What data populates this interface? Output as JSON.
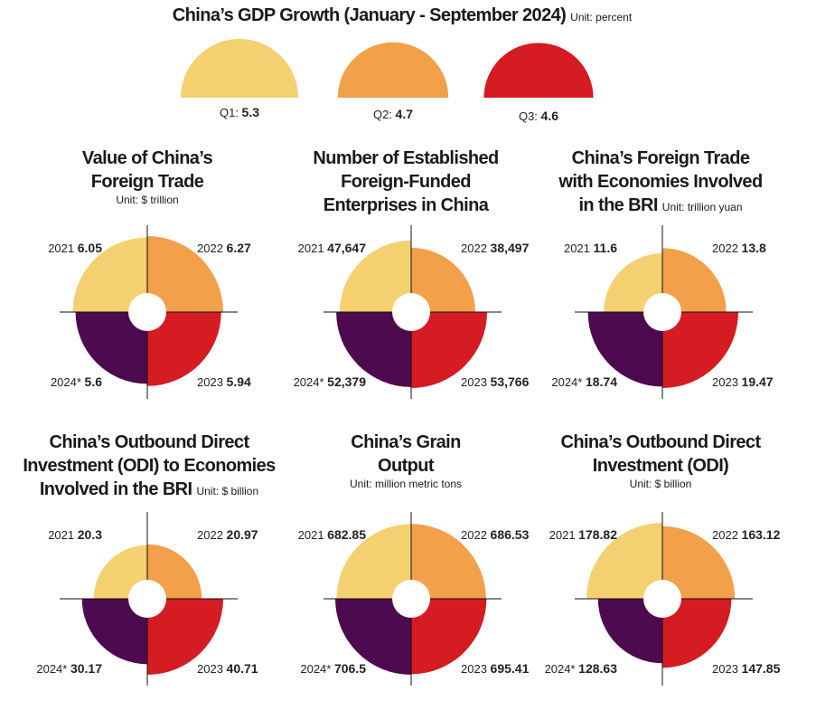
{
  "colors": {
    "y2021": "#f5d070",
    "y2022": "#f2a04a",
    "y2023": "#d41c22",
    "y2024": "#4e0a4e",
    "q1": "#f5d070",
    "q2": "#f2a04a",
    "q3": "#d41c22"
  },
  "header": {
    "title": "China’s GDP Growth",
    "period": "(January - September 2024)",
    "unit": "Unit: percent"
  },
  "chart_data": [
    {
      "type": "pie",
      "id": "gdp",
      "title": "China’s GDP Growth (January - September 2024)",
      "unit": "Unit: percent",
      "categories": [
        "Q1",
        "Q2",
        "Q3"
      ],
      "values": [
        5.3,
        4.7,
        4.6
      ]
    },
    {
      "type": "pie",
      "id": "trade",
      "title_lines": [
        "Value of China’s",
        "Foreign Trade"
      ],
      "unit": "Unit: $ trillion",
      "categories": [
        "2021",
        "2022",
        "2023",
        "2024*"
      ],
      "values": [
        6.05,
        6.27,
        5.94,
        5.6
      ],
      "value_labels": [
        "6.05",
        "6.27",
        "5.94",
        "5.6"
      ]
    },
    {
      "type": "pie",
      "id": "ffe",
      "title_lines": [
        "Number of Established",
        "Foreign-Funded",
        "Enterprises in China"
      ],
      "unit": "",
      "categories": [
        "2021",
        "2022",
        "2023",
        "2024*"
      ],
      "values": [
        47647,
        38497,
        53766,
        52379
      ],
      "value_labels": [
        "47,647",
        "38,497",
        "53,766",
        "52,379"
      ]
    },
    {
      "type": "pie",
      "id": "bri_trade",
      "title_lines": [
        "China’s Foreign Trade",
        "with Economies Involved",
        "in the BRI"
      ],
      "unit": "Unit: trillion yuan",
      "categories": [
        "2021",
        "2022",
        "2023",
        "2024*"
      ],
      "values": [
        11.6,
        13.8,
        19.47,
        18.74
      ],
      "value_labels": [
        "11.6",
        "13.8",
        "19.47",
        "18.74"
      ]
    },
    {
      "type": "pie",
      "id": "bri_odi",
      "title_lines": [
        "China’s Outbound Direct",
        "Investment (ODI) to Economies",
        "Involved in the BRI"
      ],
      "unit": "Unit: $ billion",
      "categories": [
        "2021",
        "2022",
        "2023",
        "2024*"
      ],
      "values": [
        20.3,
        20.97,
        40.71,
        30.17
      ],
      "value_labels": [
        "20.3",
        "20.97",
        "40.71",
        "30.17"
      ]
    },
    {
      "type": "pie",
      "id": "grain",
      "title_lines": [
        "China’s Grain",
        "Output"
      ],
      "unit": "Unit: million metric tons",
      "categories": [
        "2021",
        "2022",
        "2023",
        "2024*"
      ],
      "values": [
        682.85,
        686.53,
        695.41,
        706.5
      ],
      "value_labels": [
        "682.85",
        "686.53",
        "695.41",
        "706.5"
      ]
    },
    {
      "type": "pie",
      "id": "odi",
      "title_lines": [
        "China’s Outbound Direct",
        "Investment (ODI)"
      ],
      "unit": "Unit: $ billion",
      "categories": [
        "2021",
        "2022",
        "2023",
        "2024*"
      ],
      "values": [
        178.82,
        163.12,
        147.85,
        128.63
      ],
      "value_labels": [
        "178.82",
        "163.12",
        "147.85",
        "128.63"
      ]
    }
  ]
}
